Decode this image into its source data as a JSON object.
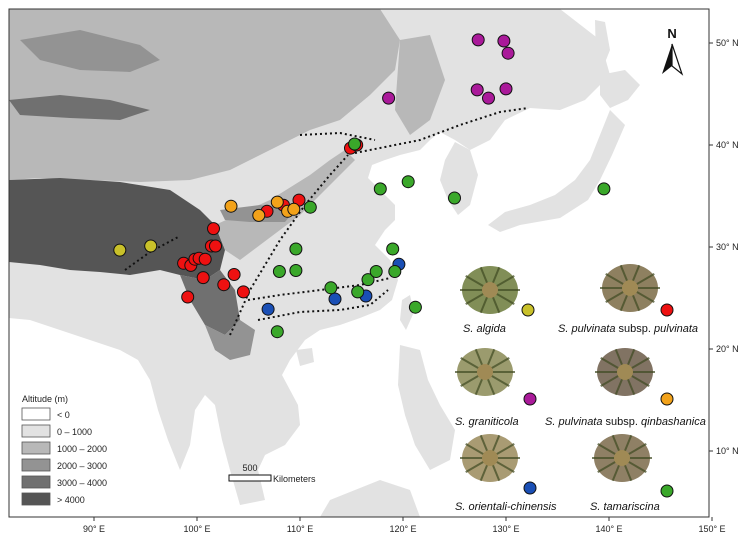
{
  "colors": {
    "ocean": "#ffffff",
    "alt_lt0": "#ffffff",
    "alt_0_1000": "#e2e2e2",
    "alt_1000_2000": "#b8b8b8",
    "alt_2000_3000": "#939393",
    "alt_3000_4000": "#707070",
    "alt_gt4000": "#555555",
    "algida": "#c9c12a",
    "pulvinata": "#ee1111",
    "graniticola": "#aa1a9a",
    "qinbashanica": "#f2a21a",
    "orientali": "#1a4fb5",
    "tamariscina": "#3aa82a"
  },
  "north_arrow": {
    "label": "N",
    "icon": "north-arrow-icon"
  },
  "longitude_ticks": [
    "90° E",
    "100° E",
    "110° E",
    "120° E",
    "130° E",
    "140° E",
    "150° E"
  ],
  "latitude_ticks": [
    "50° N",
    "40° N",
    "30° N",
    "20° N",
    "10° N"
  ],
  "legend": {
    "title": "Altitude (m)",
    "items": [
      "< 0",
      "0 – 1000",
      "1000 – 2000",
      "2000 – 3000",
      "3000 – 4000",
      "> 4000"
    ]
  },
  "scale_bar": {
    "value": "500",
    "unit": "Kilometers"
  },
  "species": [
    {
      "key": "algida",
      "genus": "S.",
      "epithet": "algida",
      "rest": ""
    },
    {
      "key": "pulvinata",
      "genus": "S.",
      "epithet": "pulvinata",
      "rest": " subsp. ",
      "rest_epithet": "pulvinata"
    },
    {
      "key": "graniticola",
      "genus": "S.",
      "epithet": "graniticola",
      "rest": ""
    },
    {
      "key": "qinbashanica",
      "genus": "S.",
      "epithet": "pulvinata",
      "rest": " subsp. ",
      "rest_epithet": "qinbashanica"
    },
    {
      "key": "orientali",
      "genus": "S.",
      "epithet": "orientali-chinensis",
      "rest": ""
    },
    {
      "key": "tamariscina",
      "genus": "S.",
      "epithet": "tamariscina",
      "rest": ""
    }
  ],
  "sites": {
    "algida": [
      [
        92.5,
        29.7
      ],
      [
        95.5,
        30.1
      ]
    ],
    "pulvinata": [
      [
        98.7,
        28.4
      ],
      [
        99.4,
        28.2
      ],
      [
        99.8,
        28.8
      ],
      [
        100.2,
        28.9
      ],
      [
        100.8,
        28.8
      ],
      [
        101.4,
        30.1
      ],
      [
        101.8,
        30.1
      ],
      [
        101.6,
        31.8
      ],
      [
        100.6,
        27.0
      ],
      [
        99.1,
        25.1
      ],
      [
        102.6,
        26.3
      ],
      [
        103.6,
        27.3
      ],
      [
        104.5,
        25.6
      ],
      [
        106.8,
        33.5
      ],
      [
        108.4,
        34.1
      ],
      [
        109.9,
        34.6
      ],
      [
        114.9,
        39.7
      ],
      [
        115.5,
        40.0
      ]
    ],
    "graniticola": [
      [
        127.3,
        50.3
      ],
      [
        129.8,
        50.2
      ],
      [
        130.2,
        49.0
      ],
      [
        127.2,
        45.4
      ],
      [
        128.3,
        44.6
      ],
      [
        130.0,
        45.5
      ],
      [
        118.6,
        44.6
      ]
    ],
    "qinbashanica": [
      [
        103.3,
        34.0
      ],
      [
        106.0,
        33.1
      ],
      [
        107.8,
        34.4
      ],
      [
        108.8,
        33.5
      ],
      [
        109.4,
        33.7
      ]
    ],
    "orientali": [
      [
        106.9,
        23.9
      ],
      [
        113.4,
        24.9
      ],
      [
        116.4,
        25.2
      ],
      [
        119.6,
        28.3
      ]
    ],
    "tamariscina": [
      [
        115.3,
        40.1
      ],
      [
        111.0,
        33.9
      ],
      [
        109.6,
        29.8
      ],
      [
        108.0,
        27.6
      ],
      [
        109.6,
        27.7
      ],
      [
        107.8,
        21.7
      ],
      [
        113.0,
        26.0
      ],
      [
        115.6,
        25.6
      ],
      [
        116.6,
        26.8
      ],
      [
        117.4,
        27.6
      ],
      [
        119.0,
        29.8
      ],
      [
        119.2,
        27.6
      ],
      [
        121.2,
        24.1
      ],
      [
        117.8,
        35.7
      ],
      [
        120.5,
        36.4
      ],
      [
        125.0,
        34.8
      ],
      [
        139.5,
        35.7
      ]
    ]
  }
}
